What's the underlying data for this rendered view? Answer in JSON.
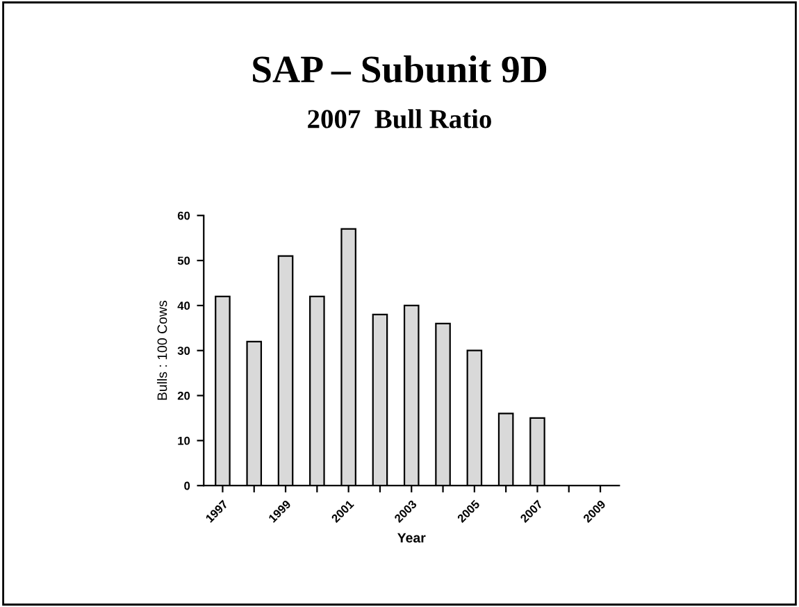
{
  "chart_data": {
    "type": "bar",
    "title": "SAP – Subunit 9D",
    "subtitle": "2007  Bull Ratio",
    "xlabel": "Year",
    "ylabel": "Bulls : 100 Cows",
    "categories": [
      "1997",
      null,
      "1999",
      null,
      "2001",
      null,
      "2003",
      null,
      "2005",
      null,
      "2007",
      null,
      "2009"
    ],
    "values": [
      42,
      32,
      51,
      42,
      57,
      38,
      40,
      36,
      30,
      16,
      15,
      null,
      null
    ],
    "color": "#d9d9d9",
    "ylim": [
      0,
      60
    ],
    "yticks": [
      0,
      10,
      20,
      30,
      40,
      50,
      60
    ],
    "grid": false
  }
}
